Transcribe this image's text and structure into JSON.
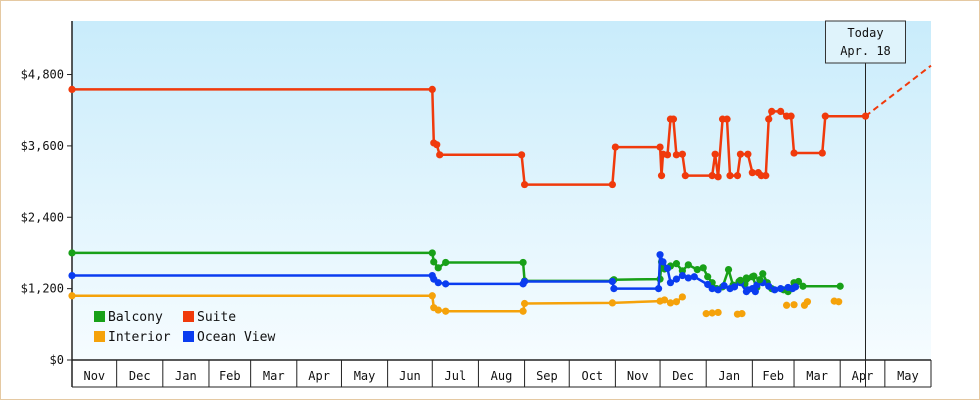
{
  "chart_data": {
    "type": "line",
    "title": "",
    "xlabel": "",
    "ylabel": "",
    "x_axis": {
      "unit": "month",
      "start": "2017-11-01",
      "end": "2019-06-01",
      "tick_labels": [
        "Nov",
        "Dec",
        "Jan",
        "Feb",
        "Mar",
        "Apr",
        "May",
        "Jun",
        "Jul",
        "Aug",
        "Sep",
        "Oct",
        "Nov",
        "Dec",
        "Jan",
        "Feb",
        "Mar",
        "Apr",
        "May"
      ]
    },
    "y_axis": {
      "range": [
        0,
        5700
      ],
      "ticks": [
        0,
        1200,
        2400,
        3600,
        4800
      ],
      "tick_labels": [
        "$0",
        "$1,200",
        "$2,400",
        "$3,600",
        "$4,800"
      ]
    },
    "grid": false,
    "legend": {
      "placement": "bottom-left"
    },
    "today_marker": {
      "date": "2019-04-18",
      "line1": "Today",
      "line2": "Apr. 18"
    },
    "projection": {
      "series": "Suite",
      "from": [
        "2019-04-18",
        4100
      ],
      "to": [
        "2019-06-01",
        4950
      ]
    },
    "series": [
      {
        "name": "Balcony",
        "color": "#18a018",
        "points": [
          [
            "2017-11-01",
            1800
          ],
          [
            "2018-07-01",
            1800
          ],
          [
            "2018-07-02",
            1650
          ],
          [
            "2018-07-05",
            1550
          ],
          [
            "2018-07-10",
            1640
          ],
          [
            "2018-08-31",
            1640
          ],
          [
            "2018-09-01",
            1330
          ],
          [
            "2018-10-30",
            1330
          ],
          [
            "2018-10-31",
            1350
          ],
          [
            "2018-12-01",
            1360
          ],
          [
            "2018-12-02",
            1650
          ],
          [
            "2018-12-04",
            1530
          ],
          [
            "2018-12-08",
            1580
          ],
          [
            "2018-12-12",
            1620
          ],
          [
            "2018-12-16",
            1500
          ],
          [
            "2018-12-20",
            1600
          ],
          [
            "2018-12-26",
            1520
          ],
          [
            "2018-12-30",
            1550
          ],
          [
            "2019-01-02",
            1400
          ],
          [
            "2019-01-05",
            1300
          ],
          [
            "2019-01-08",
            1200
          ],
          [
            "2019-01-12",
            1230
          ],
          [
            "2019-01-16",
            1520
          ],
          [
            "2019-01-19",
            1260
          ],
          [
            "2019-01-23",
            1320
          ],
          [
            "2019-01-27",
            1280
          ],
          [
            "2019-02-01",
            1400
          ],
          [
            "2019-02-04",
            1220
          ],
          [
            "2019-02-08",
            1450
          ],
          [
            "2019-02-11",
            1300
          ],
          [
            "2019-02-14",
            1200
          ],
          [
            "2019-02-22",
            1180
          ],
          [
            "2019-02-25",
            1150
          ],
          [
            "2019-03-01",
            1300
          ],
          [
            "2019-03-04",
            1320
          ],
          [
            "2019-03-07",
            1240
          ],
          [
            "2019-04-01",
            1240
          ]
        ]
      },
      {
        "name": "Suite",
        "color": "#f03a0c",
        "points": [
          [
            "2017-11-01",
            4550
          ],
          [
            "2018-07-01",
            4550
          ],
          [
            "2018-07-02",
            3650
          ],
          [
            "2018-07-04",
            3620
          ],
          [
            "2018-07-06",
            3450
          ],
          [
            "2018-08-30",
            3450
          ],
          [
            "2018-09-01",
            2950
          ],
          [
            "2018-10-30",
            2950
          ],
          [
            "2018-11-01",
            3580
          ],
          [
            "2018-12-01",
            3580
          ],
          [
            "2018-12-02",
            3100
          ],
          [
            "2018-12-03",
            3460
          ],
          [
            "2018-12-06",
            3450
          ],
          [
            "2018-12-08",
            4050
          ],
          [
            "2018-12-10",
            4050
          ],
          [
            "2018-12-12",
            3450
          ],
          [
            "2018-12-16",
            3460
          ],
          [
            "2018-12-18",
            3100
          ],
          [
            "2019-01-05",
            3100
          ],
          [
            "2019-01-07",
            3460
          ],
          [
            "2019-01-09",
            3080
          ],
          [
            "2019-01-12",
            4050
          ],
          [
            "2019-01-15",
            4050
          ],
          [
            "2019-01-17",
            3100
          ],
          [
            "2019-01-22",
            3100
          ],
          [
            "2019-01-24",
            3460
          ],
          [
            "2019-01-29",
            3460
          ],
          [
            "2019-02-01",
            3150
          ],
          [
            "2019-02-05",
            3150
          ],
          [
            "2019-02-07",
            3100
          ],
          [
            "2019-02-10",
            3100
          ],
          [
            "2019-02-12",
            4050
          ],
          [
            "2019-02-14",
            4180
          ],
          [
            "2019-02-20",
            4180
          ],
          [
            "2019-02-24",
            4100
          ],
          [
            "2019-02-27",
            4100
          ],
          [
            "2019-03-01",
            3480
          ],
          [
            "2019-03-20",
            3480
          ],
          [
            "2019-03-22",
            4100
          ],
          [
            "2019-04-18",
            4100
          ]
        ]
      },
      {
        "name": "Interior",
        "color": "#f5a20a",
        "points": [
          [
            "2017-11-01",
            1080
          ],
          [
            "2018-07-01",
            1080
          ],
          [
            "2018-07-02",
            880
          ],
          [
            "2018-07-05",
            840
          ],
          [
            "2018-07-10",
            820
          ],
          [
            "2018-08-31",
            820
          ],
          [
            "2018-09-01",
            950
          ],
          [
            "2018-10-30",
            960
          ],
          [
            "2018-12-01",
            990
          ],
          [
            "2018-12-04",
            1010
          ],
          [
            "2018-12-08",
            960
          ],
          [
            "2018-12-12",
            980
          ],
          [
            "2018-12-16",
            1060
          ]
        ]
      },
      {
        "name": "Ocean View",
        "color": "#0a3cf0",
        "points": [
          [
            "2017-11-01",
            1420
          ],
          [
            "2018-07-01",
            1420
          ],
          [
            "2018-07-02",
            1360
          ],
          [
            "2018-07-05",
            1300
          ],
          [
            "2018-07-10",
            1280
          ],
          [
            "2018-08-31",
            1280
          ],
          [
            "2018-09-01",
            1320
          ],
          [
            "2018-10-30",
            1320
          ],
          [
            "2018-10-31",
            1200
          ],
          [
            "2018-11-30",
            1200
          ],
          [
            "2018-12-01",
            1770
          ],
          [
            "2018-12-03",
            1650
          ],
          [
            "2018-12-06",
            1540
          ],
          [
            "2018-12-08",
            1300
          ],
          [
            "2018-12-12",
            1360
          ],
          [
            "2018-12-16",
            1420
          ],
          [
            "2018-12-20",
            1380
          ],
          [
            "2018-12-24",
            1400
          ],
          [
            "2019-01-02",
            1270
          ],
          [
            "2019-01-05",
            1200
          ],
          [
            "2019-01-09",
            1180
          ],
          [
            "2019-01-13",
            1250
          ],
          [
            "2019-01-17",
            1200
          ],
          [
            "2019-01-20",
            1230
          ],
          [
            "2019-01-24",
            1300
          ],
          [
            "2019-01-28",
            1150
          ],
          [
            "2019-02-01",
            1200
          ],
          [
            "2019-02-04",
            1260
          ],
          [
            "2019-02-08",
            1300
          ],
          [
            "2019-02-12",
            1240
          ],
          [
            "2019-02-16",
            1180
          ],
          [
            "2019-02-20",
            1200
          ],
          [
            "2019-02-25",
            1220
          ]
        ]
      }
    ],
    "detached_points": [
      {
        "series": "Interior",
        "points": [
          [
            "2019-01-01",
            780
          ],
          [
            "2019-01-05",
            790
          ],
          [
            "2019-01-09",
            800
          ],
          [
            "2019-01-22",
            770
          ],
          [
            "2019-01-25",
            780
          ],
          [
            "2019-02-24",
            920
          ],
          [
            "2019-03-01",
            930
          ],
          [
            "2019-03-08",
            920
          ],
          [
            "2019-03-10",
            980
          ],
          [
            "2019-03-28",
            990
          ],
          [
            "2019-03-31",
            980
          ]
        ]
      },
      {
        "series": "Balcony",
        "points": [
          [
            "2019-01-24",
            1340
          ],
          [
            "2019-01-28",
            1380
          ],
          [
            "2019-02-02",
            1410
          ],
          [
            "2019-02-06",
            1350
          ]
        ]
      },
      {
        "series": "Ocean View",
        "points": [
          [
            "2019-01-29",
            1180
          ],
          [
            "2019-02-03",
            1150
          ],
          [
            "2019-02-28",
            1200
          ],
          [
            "2019-03-02",
            1230
          ]
        ]
      }
    ]
  }
}
